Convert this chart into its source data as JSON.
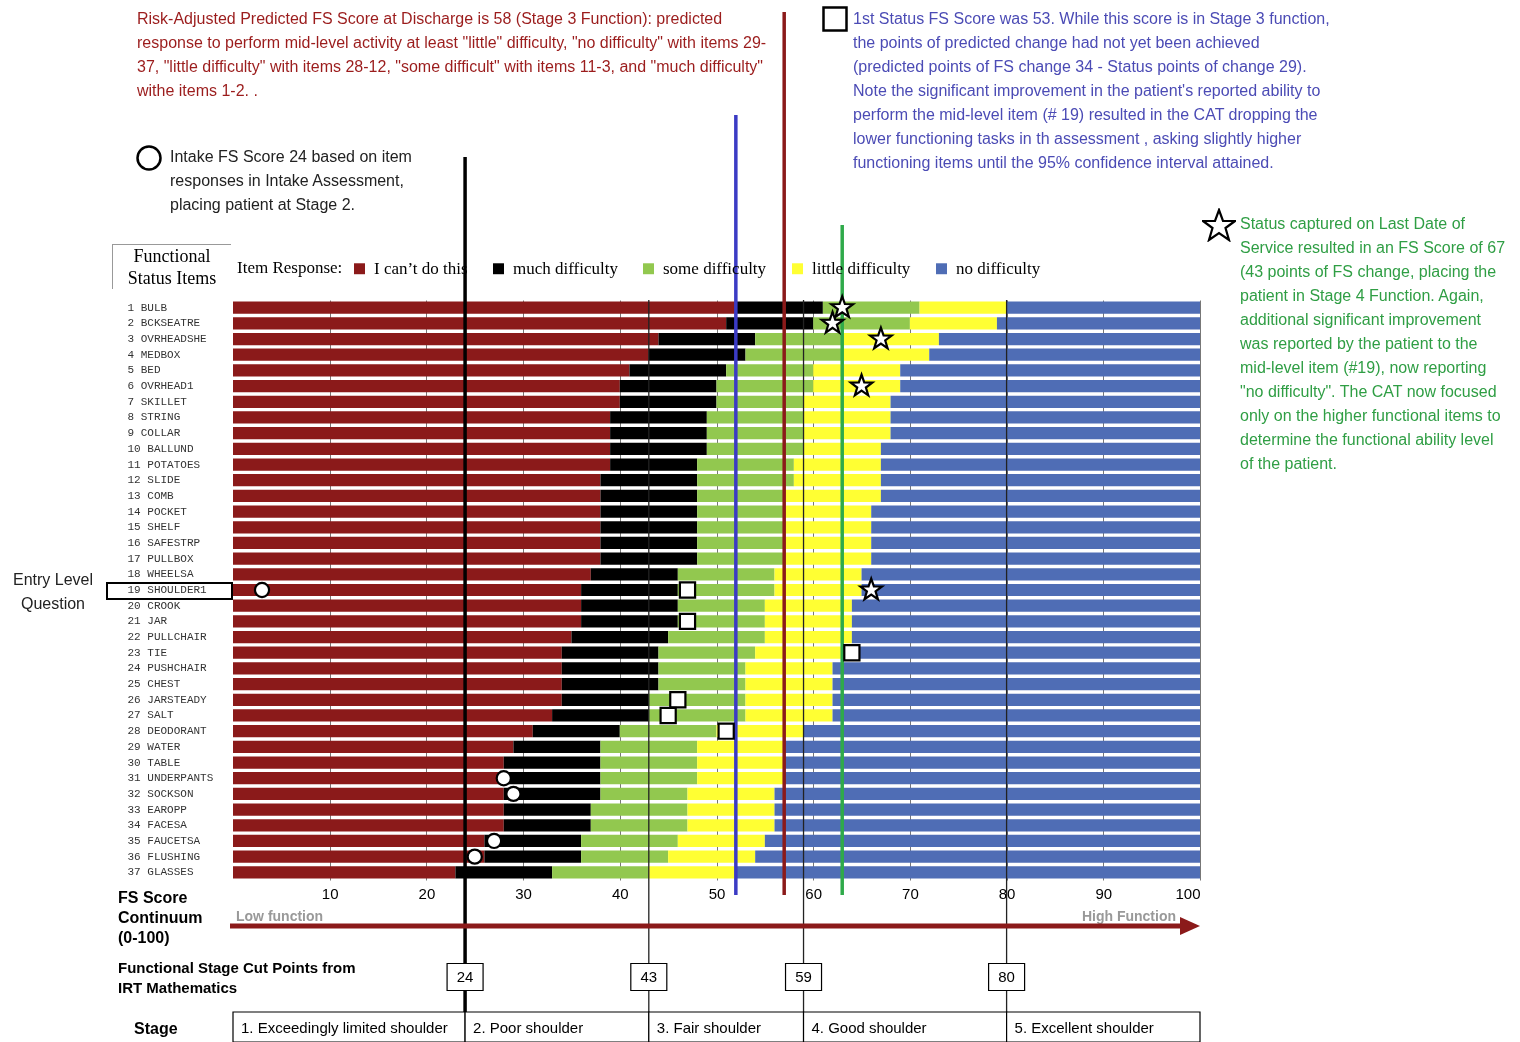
{
  "chart_data": {
    "type": "bar",
    "orientation": "horizontal",
    "stacked": true,
    "grid": "x",
    "legend": "top",
    "ylabel": "Functional Status Items",
    "xlabel": "FS Score Continuum (0-100)",
    "legend_title": "Item Response:",
    "categories": [
      "1 BULB",
      "2 BCKSEATRE",
      "3 OVRHEADSHE",
      "4 MEDBOX",
      "5 BED",
      "6 OVRHEAD1",
      "7 SKILLET",
      "8 STRING",
      "9 COLLAR",
      "10 BALLUND",
      "11 POTATOES",
      "12 SLIDE",
      "13 COMB",
      "14 POCKET",
      "15 SHELF",
      "16 SAFESTRP",
      "17 PULLBOX",
      "18 WHEELSA",
      "19 SHOULDER1",
      "20 CROOK",
      "21 JAR",
      "22 PULLCHAIR",
      "23 TIE",
      "24 PUSHCHAIR",
      "25 CHEST",
      "26 JARSTEADY",
      "27 SALT",
      "28 DEODORANT",
      "29 WATER",
      "30 TABLE",
      "31 UNDERPANTS",
      "32 SOCKSON",
      "33 EAROPP",
      "34 FACESA",
      "35 FAUCETSA",
      "36 FLUSHING",
      "37 GLASSES"
    ],
    "xlim": [
      0,
      100
    ],
    "xticks": [
      10,
      20,
      30,
      40,
      50,
      60,
      70,
      80,
      90,
      100
    ],
    "series": [
      {
        "name": "I can’t do this",
        "color": "#8b1a1a",
        "values": [
          52,
          51,
          44,
          43,
          41,
          40,
          40,
          39,
          39,
          39,
          39,
          38,
          38,
          38,
          38,
          38,
          38,
          37,
          36,
          36,
          36,
          35,
          34,
          34,
          34,
          34,
          33,
          31,
          29,
          28,
          28,
          28,
          28,
          28,
          26,
          26,
          23
        ]
      },
      {
        "name": "much difficulty",
        "color": "#000000",
        "values": [
          9,
          9,
          10,
          10,
          10,
          10,
          10,
          10,
          10,
          10,
          9,
          10,
          10,
          10,
          10,
          10,
          10,
          9,
          10,
          10,
          10,
          10,
          10,
          10,
          10,
          9,
          10,
          9,
          9,
          10,
          10,
          10,
          9,
          9,
          10,
          10,
          10
        ]
      },
      {
        "name": "some difficulty",
        "color": "#92c84f",
        "values": [
          10,
          10,
          9,
          10,
          9,
          10,
          9,
          10,
          10,
          10,
          10,
          10,
          9,
          9,
          9,
          9,
          9,
          10,
          10,
          9,
          9,
          10,
          10,
          9,
          9,
          10,
          10,
          10,
          10,
          10,
          10,
          9,
          10,
          10,
          10,
          9,
          10
        ]
      },
      {
        "name": "little difficulty",
        "color": "#ffff33",
        "values": [
          9,
          9,
          10,
          9,
          9,
          9,
          9,
          9,
          9,
          8,
          9,
          9,
          10,
          9,
          9,
          9,
          9,
          9,
          9,
          9,
          9,
          9,
          9,
          9,
          9,
          9,
          9,
          9,
          9,
          9,
          9,
          9,
          9,
          9,
          9,
          9,
          9
        ]
      },
      {
        "name": "no difficulty",
        "color": "#4f6db5",
        "values": [
          20,
          21,
          27,
          28,
          31,
          31,
          32,
          32,
          32,
          33,
          33,
          33,
          33,
          34,
          34,
          34,
          34,
          35,
          35,
          36,
          36,
          36,
          37,
          38,
          38,
          38,
          38,
          41,
          43,
          43,
          43,
          44,
          44,
          44,
          45,
          46,
          48
        ]
      },
      {
        "type": "scatter",
        "marker": "circle",
        "color": "#ffffff",
        "x": [
          "19 SHOULDER1",
          "31 UNDERPANTS",
          "32 SOCKSON",
          "35 FAUCETSA",
          "36 FLUSHING"
        ],
        "values": [
          3,
          28,
          29,
          27,
          25
        ]
      },
      {
        "type": "scatter",
        "marker": "square",
        "color": "#ffffff",
        "x": [
          "19 SHOULDER1",
          "21 JAR",
          "23 TIE",
          "26 JARSTEADY",
          "27 SALT",
          "28 DEODORANT"
        ],
        "values": [
          47,
          47,
          64,
          46,
          45,
          51
        ]
      },
      {
        "type": "scatter",
        "marker": "star",
        "color": "#ffffff",
        "x": [
          "1 BULB",
          "2 BCKSEATRE",
          "3 OVRHEADSHE",
          "6 OVRHEAD1",
          "19 SHOULDER1"
        ],
        "values": [
          63,
          62,
          67,
          65,
          66
        ]
      }
    ],
    "ref_lines": [
      {
        "axis": "x",
        "value": 24,
        "label": "24",
        "color": "#000000"
      },
      {
        "axis": "x",
        "value": 43,
        "label": "43"
      },
      {
        "axis": "x",
        "value": 59,
        "label": "59"
      },
      {
        "axis": "x",
        "value": 80,
        "label": "80"
      },
      {
        "axis": "x",
        "value": 52,
        "color": "#3b3bc4"
      },
      {
        "axis": "x",
        "value": 57,
        "color": "#8b1a1a"
      },
      {
        "axis": "x",
        "value": 63,
        "color": "#2faa4a"
      }
    ],
    "annotations": [
      "Risk-Adjusted Predicted FS Score at Discharge is 58 (Stage 3 Function): predicted response to perform mid-level activity at least \"little\" difficulty, \"no difficulty\" with items 29-37, \"little difficulty\" with items 28-12, \"some difficult\" with items 11-3, and \"much difficulty\" withe items 1-2. .",
      "1st Status FS Score was 53. While this score is in Stage 3 function, the points of predicted change had not yet been achieved (predicted points of FS change 34 - Status points of change 29). Note the significant improvement in the patient's reported ability to perform the mid-level item (# 19) resulted in the CAT dropping the lower functioning tasks in th assessment , asking slightly higher functioning items until the 95% confidence interval attained.",
      "Intake FS Score 24 based on item responses in Intake Assessment, placing patient at Stage 2.",
      "Status captured on Last Date of Service resulted in an FS Score of 67 (43 points of FS change, placing the patient in Stage 4 Function. Again, additional significant improvement was reported by the patient to the mid-level item (#19), now reporting \"no difficulty\". The CAT now focused only on the higher functional items to determine the functional ability level of the patient.",
      "Entry Level Question",
      "Low function",
      "High Function",
      "Functional Stage Cut Points from IRT Mathematics",
      "Stage",
      "1. Exceedingly limited shoulder",
      "2. Poor shoulder",
      "3. Fair shoulder",
      "4. Good shoulder",
      "5. Excellent shoulder"
    ]
  }
}
